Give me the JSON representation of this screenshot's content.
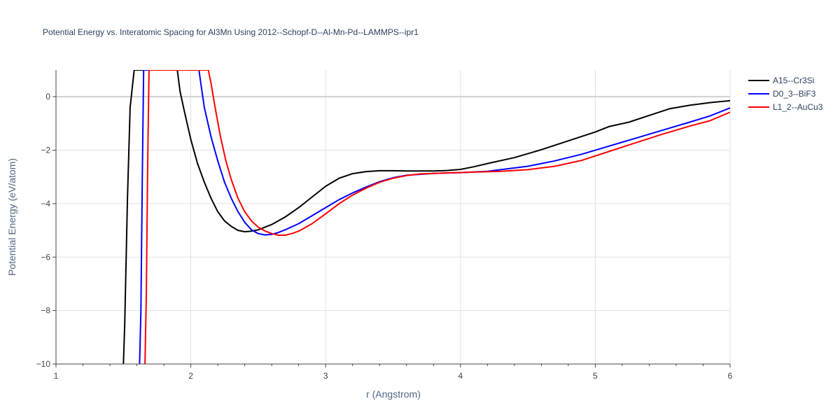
{
  "chart_data": {
    "type": "line",
    "title": "Potential Energy vs. Interatomic Spacing for Al3Mn Using 2012--Schopf-D--Al-Mn-Pd--LAMMPS--ipr1",
    "xlabel": "r (Angstrom)",
    "ylabel": "Potential Energy (eV/atom)",
    "xlim": [
      1,
      6
    ],
    "ylim": [
      -10,
      1
    ],
    "xticks": [
      1,
      2,
      3,
      4,
      5,
      6
    ],
    "xtick_labels": [
      "1",
      "2",
      "3",
      "4",
      "5",
      "6"
    ],
    "yticks": [
      0,
      -2,
      -4,
      -6,
      -8,
      -10
    ],
    "ytick_labels": [
      "0",
      "−2",
      "−4",
      "−6",
      "−8",
      "−10"
    ],
    "grid": true,
    "legend_position": "top-right",
    "series": [
      {
        "name": "A15--Cr3Si",
        "color": "#000000",
        "points": [
          [
            1.5,
            -10.0
          ],
          [
            1.51,
            -8.5
          ],
          [
            1.53,
            -3.8
          ],
          [
            1.55,
            -0.4
          ],
          [
            1.58,
            1.0
          ],
          [
            1.9,
            1.0
          ],
          [
            1.92,
            0.2
          ],
          [
            1.95,
            -0.5
          ],
          [
            2.0,
            -1.6
          ],
          [
            2.05,
            -2.5
          ],
          [
            2.1,
            -3.2
          ],
          [
            2.15,
            -3.8
          ],
          [
            2.2,
            -4.3
          ],
          [
            2.25,
            -4.65
          ],
          [
            2.3,
            -4.85
          ],
          [
            2.35,
            -5.0
          ],
          [
            2.4,
            -5.05
          ],
          [
            2.45,
            -5.03
          ],
          [
            2.5,
            -4.98
          ],
          [
            2.6,
            -4.78
          ],
          [
            2.7,
            -4.5
          ],
          [
            2.8,
            -4.15
          ],
          [
            2.9,
            -3.75
          ],
          [
            3.0,
            -3.35
          ],
          [
            3.1,
            -3.05
          ],
          [
            3.2,
            -2.88
          ],
          [
            3.3,
            -2.8
          ],
          [
            3.4,
            -2.77
          ],
          [
            3.5,
            -2.77
          ],
          [
            3.6,
            -2.78
          ],
          [
            3.8,
            -2.78
          ],
          [
            3.9,
            -2.76
          ],
          [
            4.0,
            -2.72
          ],
          [
            4.1,
            -2.62
          ],
          [
            4.2,
            -2.5
          ],
          [
            4.4,
            -2.28
          ],
          [
            4.6,
            -1.98
          ],
          [
            4.8,
            -1.65
          ],
          [
            5.0,
            -1.32
          ],
          [
            5.1,
            -1.12
          ],
          [
            5.25,
            -0.95
          ],
          [
            5.4,
            -0.7
          ],
          [
            5.55,
            -0.45
          ],
          [
            5.7,
            -0.32
          ],
          [
            5.85,
            -0.22
          ],
          [
            6.0,
            -0.15
          ]
        ]
      },
      {
        "name": "D0_3--BiF3",
        "color": "#0000ff",
        "points": [
          [
            1.62,
            -10.0
          ],
          [
            1.63,
            -8.0
          ],
          [
            1.64,
            -3.0
          ],
          [
            1.65,
            1.0
          ],
          [
            2.06,
            1.0
          ],
          [
            2.08,
            0.3
          ],
          [
            2.1,
            -0.4
          ],
          [
            2.15,
            -1.5
          ],
          [
            2.2,
            -2.4
          ],
          [
            2.25,
            -3.2
          ],
          [
            2.3,
            -3.8
          ],
          [
            2.35,
            -4.3
          ],
          [
            2.4,
            -4.7
          ],
          [
            2.45,
            -4.98
          ],
          [
            2.5,
            -5.12
          ],
          [
            2.55,
            -5.17
          ],
          [
            2.6,
            -5.15
          ],
          [
            2.65,
            -5.08
          ],
          [
            2.7,
            -4.98
          ],
          [
            2.8,
            -4.75
          ],
          [
            2.9,
            -4.45
          ],
          [
            3.0,
            -4.15
          ],
          [
            3.1,
            -3.85
          ],
          [
            3.2,
            -3.6
          ],
          [
            3.3,
            -3.38
          ],
          [
            3.4,
            -3.18
          ],
          [
            3.5,
            -3.03
          ],
          [
            3.6,
            -2.94
          ],
          [
            3.8,
            -2.87
          ],
          [
            4.0,
            -2.84
          ],
          [
            4.2,
            -2.79
          ],
          [
            4.5,
            -2.6
          ],
          [
            4.7,
            -2.4
          ],
          [
            4.9,
            -2.15
          ],
          [
            5.1,
            -1.85
          ],
          [
            5.3,
            -1.55
          ],
          [
            5.5,
            -1.25
          ],
          [
            5.7,
            -0.95
          ],
          [
            5.85,
            -0.72
          ],
          [
            6.0,
            -0.42
          ]
        ]
      },
      {
        "name": "L1_2--AuCu3",
        "color": "#ff0000",
        "points": [
          [
            1.66,
            -10.0
          ],
          [
            1.67,
            -7.5
          ],
          [
            1.68,
            -2.5
          ],
          [
            1.69,
            1.0
          ],
          [
            2.13,
            1.0
          ],
          [
            2.15,
            0.5
          ],
          [
            2.18,
            -0.4
          ],
          [
            2.22,
            -1.5
          ],
          [
            2.26,
            -2.4
          ],
          [
            2.3,
            -3.1
          ],
          [
            2.35,
            -3.8
          ],
          [
            2.4,
            -4.3
          ],
          [
            2.45,
            -4.65
          ],
          [
            2.5,
            -4.88
          ],
          [
            2.55,
            -5.02
          ],
          [
            2.6,
            -5.12
          ],
          [
            2.65,
            -5.18
          ],
          [
            2.7,
            -5.18
          ],
          [
            2.75,
            -5.12
          ],
          [
            2.8,
            -5.03
          ],
          [
            2.9,
            -4.75
          ],
          [
            3.0,
            -4.38
          ],
          [
            3.1,
            -4.0
          ],
          [
            3.2,
            -3.68
          ],
          [
            3.3,
            -3.42
          ],
          [
            3.4,
            -3.2
          ],
          [
            3.5,
            -3.05
          ],
          [
            3.6,
            -2.95
          ],
          [
            3.7,
            -2.89
          ],
          [
            3.9,
            -2.85
          ],
          [
            4.1,
            -2.82
          ],
          [
            4.3,
            -2.79
          ],
          [
            4.5,
            -2.73
          ],
          [
            4.7,
            -2.6
          ],
          [
            4.9,
            -2.38
          ],
          [
            5.1,
            -2.05
          ],
          [
            5.3,
            -1.72
          ],
          [
            5.5,
            -1.4
          ],
          [
            5.7,
            -1.1
          ],
          [
            5.85,
            -0.9
          ],
          [
            6.0,
            -0.58
          ]
        ]
      }
    ]
  }
}
